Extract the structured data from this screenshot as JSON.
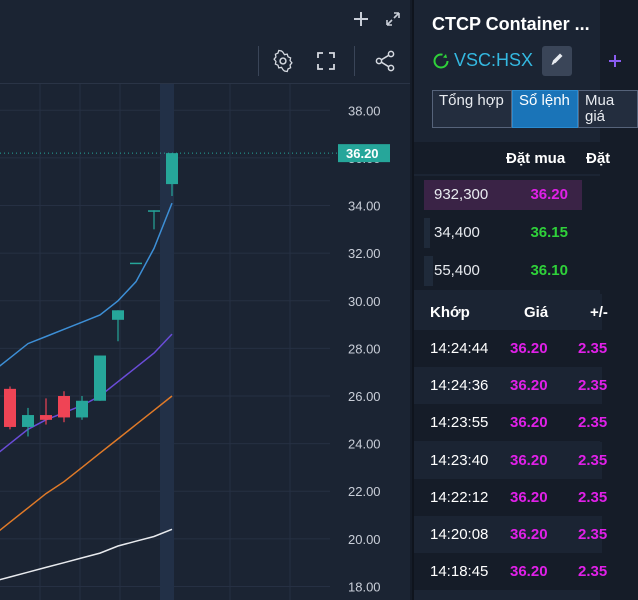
{
  "chart": {
    "y_labels": [
      "38.00",
      "36.00",
      "34.00",
      "32.00",
      "30.00",
      "28.00",
      "26.00",
      "24.00",
      "22.00",
      "20.00",
      "18.00"
    ],
    "last_price": "36.20",
    "colors": {
      "up": "#26a69a",
      "down": "#ef4455",
      "last_price_bg": "#26a69a"
    }
  },
  "chart_data": {
    "type": "candlestick",
    "title": "",
    "ylim": [
      17.6,
      38.6
    ],
    "y_ticks": [
      38,
      36,
      34,
      32,
      30,
      28,
      26,
      24,
      22,
      20,
      18
    ],
    "candles": [
      {
        "open": 26.3,
        "high": 26.4,
        "low": 24.6,
        "close": 24.7
      },
      {
        "open": 24.7,
        "high": 25.5,
        "low": 24.3,
        "close": 25.2
      },
      {
        "open": 25.2,
        "high": 25.9,
        "low": 24.8,
        "close": 25.0
      },
      {
        "open": 26.0,
        "high": 26.2,
        "low": 24.9,
        "close": 25.1
      },
      {
        "open": 25.1,
        "high": 26.0,
        "low": 25.0,
        "close": 25.8
      },
      {
        "open": 25.8,
        "high": 27.7,
        "low": 25.8,
        "close": 27.7
      },
      {
        "open": 29.2,
        "high": 29.6,
        "low": 28.3,
        "close": 29.6
      },
      {
        "open": 31.6,
        "high": 31.6,
        "low": 31.6,
        "close": 31.6
      },
      {
        "open": 33.8,
        "high": 33.8,
        "low": 33.0,
        "close": 33.8
      },
      {
        "open": 34.9,
        "high": 36.2,
        "low": 34.4,
        "close": 36.2
      }
    ],
    "lines": [
      {
        "name": "",
        "color": "#3d8fd6",
        "points": [
          [
            0,
            27.6
          ],
          [
            1,
            28.2
          ],
          [
            2,
            28.5
          ],
          [
            3,
            28.8
          ],
          [
            4,
            29.1
          ],
          [
            5,
            29.4
          ],
          [
            6,
            30.0
          ],
          [
            7,
            30.8
          ],
          [
            8,
            32.2
          ],
          [
            9,
            34.1
          ]
        ]
      },
      {
        "name": "",
        "color": "#6a4cd8",
        "points": [
          [
            0,
            24.0
          ],
          [
            1,
            24.6
          ],
          [
            2,
            25.0
          ],
          [
            3,
            25.3
          ],
          [
            4,
            25.6
          ],
          [
            5,
            26.0
          ],
          [
            6,
            26.6
          ],
          [
            7,
            27.2
          ],
          [
            8,
            27.8
          ],
          [
            9,
            28.6
          ]
        ]
      },
      {
        "name": "",
        "color": "#e07a28",
        "points": [
          [
            0,
            20.7
          ],
          [
            1,
            21.3
          ],
          [
            2,
            21.9
          ],
          [
            3,
            22.4
          ],
          [
            4,
            23.0
          ],
          [
            5,
            23.6
          ],
          [
            6,
            24.2
          ],
          [
            7,
            24.8
          ],
          [
            8,
            25.4
          ],
          [
            9,
            26.0
          ]
        ]
      },
      {
        "name": "",
        "color": "#e8eaee",
        "points": [
          [
            0,
            18.4
          ],
          [
            1,
            18.6
          ],
          [
            2,
            18.8
          ],
          [
            3,
            19.0
          ],
          [
            4,
            19.2
          ],
          [
            5,
            19.4
          ],
          [
            6,
            19.7
          ],
          [
            7,
            19.9
          ],
          [
            8,
            20.1
          ],
          [
            9,
            20.4
          ]
        ]
      }
    ],
    "grid": true,
    "last_price_line": 36.2
  },
  "header": {
    "title": "CTCP Container ...",
    "symbol": "VSC:HSX"
  },
  "tabs": [
    {
      "label": "Tổng hợp",
      "active": false
    },
    {
      "label": "Sổ lệnh",
      "active": true
    },
    {
      "label": "Mua giá",
      "active": false
    }
  ],
  "orderbook": {
    "header_bid": "Đặt mua",
    "header_ask": "Đặt",
    "rows": [
      {
        "volume": "932,300",
        "price": "36.20",
        "price_color": "#e020e8",
        "bar_fraction": 1.0
      },
      {
        "volume": "34,400",
        "price": "36.15",
        "price_color": "#2fd13a",
        "bar_fraction": 0.04
      },
      {
        "volume": "55,400",
        "price": "36.10",
        "price_color": "#2fd13a",
        "bar_fraction": 0.06
      }
    ]
  },
  "trades": {
    "header_time": "Khớp",
    "header_price": "Giá",
    "header_change": "+/-",
    "rows": [
      {
        "time": "14:24:44",
        "price": "36.20",
        "change": "2.35"
      },
      {
        "time": "14:24:36",
        "price": "36.20",
        "change": "2.35"
      },
      {
        "time": "14:23:55",
        "price": "36.20",
        "change": "2.35"
      },
      {
        "time": "14:23:40",
        "price": "36.20",
        "change": "2.35"
      },
      {
        "time": "14:22:12",
        "price": "36.20",
        "change": "2.35"
      },
      {
        "time": "14:20:08",
        "price": "36.20",
        "change": "2.35"
      },
      {
        "time": "14:18:45",
        "price": "36.20",
        "change": "2.35"
      }
    ]
  },
  "icons": {
    "add": "plus-icon",
    "expand": "expand-icon",
    "settings": "gear-icon",
    "fullscreen": "fullscreen-icon",
    "share": "share-icon",
    "status": "refresh-circle-icon",
    "edit": "pencil-icon"
  }
}
